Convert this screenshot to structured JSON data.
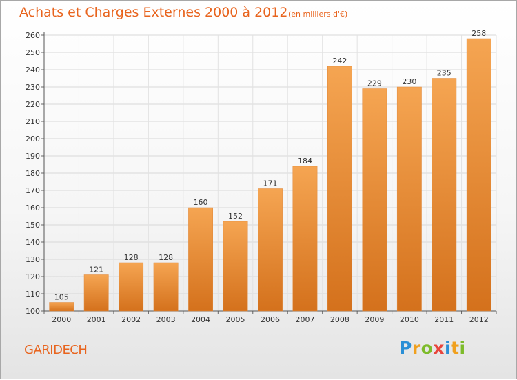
{
  "header": {
    "title": "Achats et Charges Externes 2000 à 2012",
    "subtitle": "(en milliers d'€)"
  },
  "footer": {
    "place": "GARIDECH",
    "logo_letters": [
      {
        "ch": "P",
        "color": "#2a8fd6"
      },
      {
        "ch": "r",
        "color": "#f0a01e"
      },
      {
        "ch": "o",
        "color": "#7dbb2a"
      },
      {
        "ch": "x",
        "color": "#e8453c"
      },
      {
        "ch": "i",
        "color": "#2a8fd6"
      },
      {
        "ch": "t",
        "color": "#f0a01e"
      },
      {
        "ch": "i",
        "color": "#7dbb2a"
      }
    ]
  },
  "colors": {
    "accent": "#e8641e",
    "bar_top": "#f5a552",
    "bar_bottom": "#d4711c"
  },
  "chart_data": {
    "type": "bar",
    "title": "Achats et Charges Externes 2000 à 2012",
    "subtitle": "(en milliers d'€)",
    "xlabel": "",
    "ylabel": "",
    "categories": [
      "2000",
      "2001",
      "2002",
      "2003",
      "2004",
      "2005",
      "2006",
      "2007",
      "2008",
      "2009",
      "2010",
      "2011",
      "2012"
    ],
    "values": [
      105,
      121,
      128,
      128,
      160,
      152,
      171,
      184,
      242,
      229,
      230,
      235,
      258
    ],
    "ylim": [
      100,
      260
    ],
    "yticks": [
      100,
      110,
      120,
      130,
      140,
      150,
      160,
      170,
      180,
      190,
      200,
      210,
      220,
      230,
      240,
      250,
      260
    ],
    "grid": true,
    "legend": "none"
  }
}
